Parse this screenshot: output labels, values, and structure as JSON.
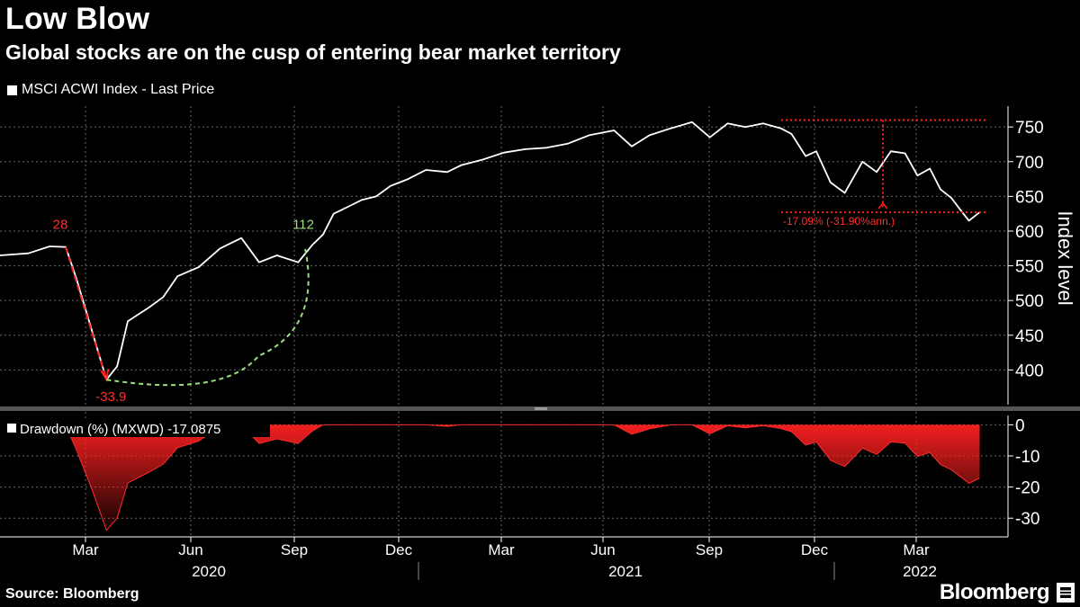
{
  "header": {
    "title": "Low Blow",
    "subtitle": "Global stocks are on the cusp of entering bear market territory",
    "legend_label": "MSCI ACWI Index - Last Price"
  },
  "footer": {
    "source": "Source: Bloomberg",
    "brand": "Bloomberg"
  },
  "chart_data": [
    {
      "type": "line",
      "title": "MSCI ACWI Index - Last Price",
      "ylabel": "Index level",
      "ylim": [
        350,
        780
      ],
      "yticks": [
        400,
        450,
        500,
        550,
        600,
        650,
        700,
        750
      ],
      "x_months": [
        "Mar",
        "Jun",
        "Sep",
        "Dec",
        "Mar",
        "Jun",
        "Sep",
        "Dec",
        "Mar"
      ],
      "x_years": [
        "2020",
        "2021",
        "2022"
      ],
      "x_start": "2019-12",
      "x_end": "2022-04",
      "series": [
        {
          "name": "MSCI ACWI Index",
          "color": "#ffffff",
          "t": [
            0,
            0.8,
            1.4,
            1.85,
            2.15,
            2.6,
            3.0,
            3.3,
            3.6,
            4.2,
            4.6,
            5.0,
            5.6,
            6.2,
            6.8,
            7.3,
            7.8,
            8.4,
            8.8,
            9.1,
            9.4,
            9.8,
            10.2,
            10.6,
            11.0,
            11.5,
            12.0,
            12.6,
            13.0,
            13.6,
            14.2,
            14.8,
            15.4,
            16.0,
            16.6,
            17.3,
            17.8,
            18.3,
            18.9,
            19.5,
            20.0,
            20.5,
            21.0,
            21.5,
            22.0,
            22.3,
            22.7,
            23.0,
            23.4,
            23.8,
            24.3,
            24.7,
            25.1,
            25.5,
            25.85,
            26.2,
            26.5,
            26.8,
            27.1,
            27.3,
            27.6
          ],
          "values": [
            565,
            568,
            578,
            577,
            532,
            455,
            386,
            405,
            470,
            490,
            505,
            535,
            548,
            575,
            590,
            555,
            565,
            555,
            580,
            595,
            625,
            635,
            645,
            650,
            665,
            675,
            688,
            685,
            695,
            703,
            713,
            718,
            720,
            726,
            738,
            745,
            722,
            738,
            748,
            757,
            735,
            755,
            750,
            755,
            748,
            740,
            708,
            715,
            670,
            655,
            700,
            685,
            715,
            712,
            680,
            690,
            660,
            648,
            628,
            615,
            627
          ]
        }
      ],
      "annotations": {
        "peak_label": "28",
        "trough_label": "-33.9",
        "recovery_label": "112",
        "drawdown_label": "-17.09% (-31.90%ann.)",
        "high_level": 760,
        "low_level": 627
      }
    },
    {
      "type": "area",
      "title": "Drawdown (%) (MXWD) -17.0875",
      "ylim": [
        -36,
        3
      ],
      "yticks": [
        0,
        -10,
        -20,
        -30
      ],
      "series": [
        {
          "name": "Drawdown (%) (MXWD)",
          "color": "#ff2020",
          "t": [
            0,
            1.4,
            1.85,
            2.15,
            2.6,
            3.0,
            3.3,
            3.6,
            4.2,
            4.6,
            5.0,
            5.6,
            6.2,
            6.8,
            7.3,
            7.8,
            8.4,
            8.8,
            9.1,
            9.4,
            9.8,
            10.2,
            10.6,
            11.0,
            11.5,
            12.0,
            12.6,
            13.0,
            13.6,
            14.2,
            14.8,
            15.4,
            16.0,
            16.6,
            17.3,
            17.8,
            18.3,
            18.9,
            19.5,
            20.0,
            20.5,
            21.0,
            21.5,
            22.0,
            22.3,
            22.7,
            23.0,
            23.4,
            23.8,
            24.3,
            24.7,
            25.1,
            25.5,
            25.85,
            26.2,
            26.5,
            26.8,
            27.1,
            27.3,
            27.6
          ],
          "values": [
            -1.5,
            0,
            -0.2,
            -8,
            -21,
            -33.9,
            -30,
            -18.7,
            -15.2,
            -12.6,
            -7.4,
            -5.2,
            -0.5,
            0,
            -6,
            -4.5,
            -6,
            -2,
            0,
            0,
            0,
            0,
            0,
            0,
            0,
            0,
            -0.5,
            0,
            0,
            0,
            0,
            0,
            0,
            0,
            0,
            -3,
            -1.3,
            0,
            0,
            -2.9,
            -0.3,
            -1,
            -0.3,
            -1.2,
            -2.2,
            -6.5,
            -5.5,
            -11.4,
            -13.4,
            -7.5,
            -9.5,
            -5.5,
            -5.9,
            -10.2,
            -8.9,
            -12.8,
            -14.4,
            -17,
            -18.8,
            -17.09
          ]
        }
      ]
    }
  ]
}
